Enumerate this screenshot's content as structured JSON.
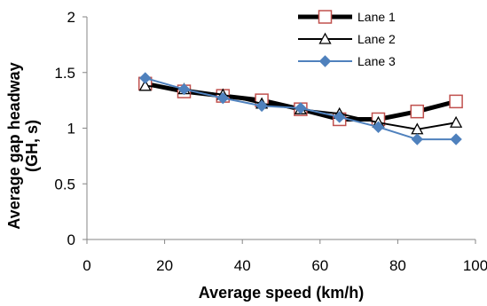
{
  "chart_data": {
    "type": "line",
    "title": "",
    "xlabel": "Average speed (km/h)",
    "ylabel_line1": "Average gap headway",
    "ylabel_line2": "(GH, s)",
    "xlim": [
      0,
      100
    ],
    "ylim": [
      0,
      2
    ],
    "xticks": [
      "0",
      "20",
      "40",
      "60",
      "80",
      "100"
    ],
    "yticks": [
      "0",
      "0.5",
      "1",
      "1.5",
      "2"
    ],
    "grid": false,
    "legend_position": "top-right",
    "x": [
      15,
      25,
      35,
      45,
      55,
      65,
      75,
      85,
      95
    ],
    "series": [
      {
        "name": "Lane 1",
        "values": [
          1.4,
          1.33,
          1.29,
          1.25,
          1.17,
          1.08,
          1.08,
          1.15,
          1.24
        ],
        "color": "#000000",
        "marker": "square",
        "marker_color": "#c0504d"
      },
      {
        "name": "Lane 2",
        "values": [
          1.38,
          1.35,
          1.3,
          1.22,
          1.17,
          1.13,
          1.05,
          0.99,
          1.05
        ],
        "color": "#000000",
        "marker": "triangle",
        "marker_color": "#000000"
      },
      {
        "name": "Lane 3",
        "values": [
          1.45,
          1.35,
          1.27,
          1.2,
          1.18,
          1.1,
          1.01,
          0.9,
          0.9
        ],
        "color": "#4f81bd",
        "marker": "diamond",
        "marker_color": "#4f81bd"
      }
    ]
  }
}
